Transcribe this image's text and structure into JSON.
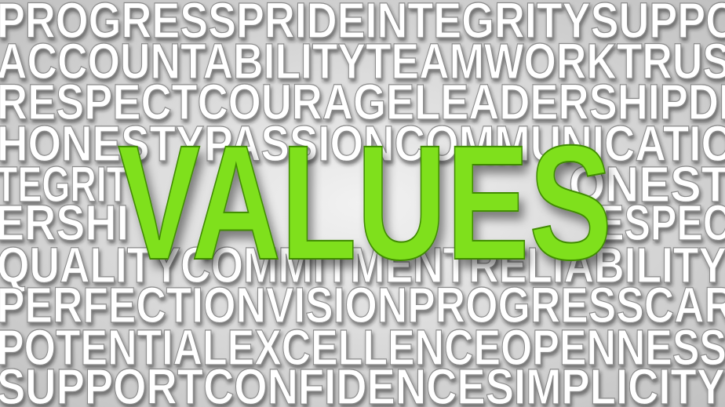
{
  "background_words": {
    "rows": [
      [
        "PROGRESSPRIDEINTEGRITYSUPPO"
      ],
      [
        "ACCOUNTABILITYTEAMWORKTRUS"
      ],
      [
        "RESPECTCOURAGELEADERSHIPDI"
      ],
      [
        "HONESTYPASSIONCOMMUNICATIO"
      ],
      [
        "TEGRIT",
        "ONEST"
      ],
      [
        "ERSHI",
        "ESPEC"
      ],
      [
        "QUALITYCOMMITMENTRELIABILITY"
      ],
      [
        "PERFECTIONVISIONPROGRESSCAR"
      ],
      [
        "POTENTIALEXCELLENCEOPENNESS"
      ],
      [
        "SUPPORTCONFIDENCESIMPLICITY"
      ]
    ]
  },
  "title": "VALUES"
}
